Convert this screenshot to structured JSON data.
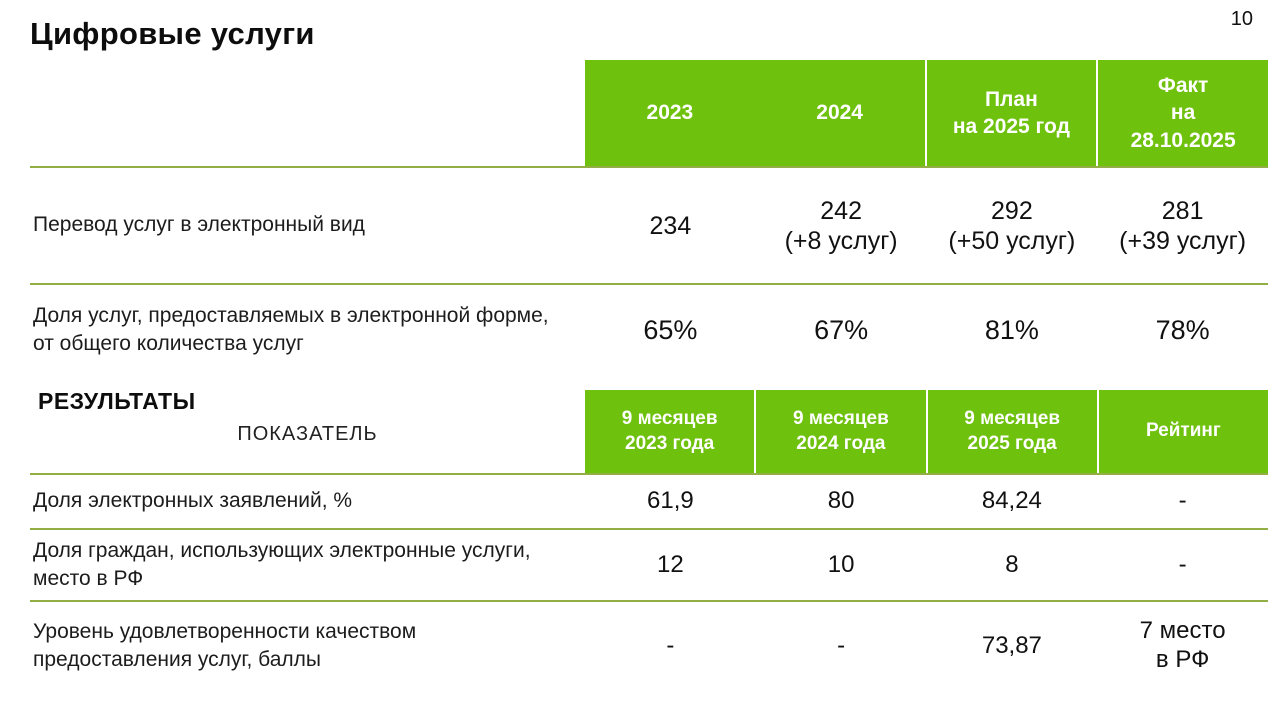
{
  "page": {
    "title": "Цифровые услуги",
    "page_number": "10"
  },
  "colors": {
    "header_green": "#6ec10c",
    "separator_line_green": "#93ae44",
    "header_text": "#ffffff",
    "body_text": "#1c1c1c"
  },
  "table1": {
    "columns": [
      "2023",
      "2024",
      "План\nна 2025 год",
      "Факт\nна\n28.10.2025"
    ],
    "rows": [
      {
        "label": "Перевод услуг в электронный вид",
        "values": [
          "234",
          "242\n(+8 услуг)",
          "292\n(+50 услуг)",
          "281\n(+39 услуг)"
        ]
      },
      {
        "label": "Доля услуг, предоставляемых в электронной форме, от общего количества услуг",
        "values": [
          "65%",
          "67%",
          "81%",
          "78%"
        ]
      }
    ]
  },
  "results": {
    "heading": "РЕЗУЛЬТАТЫ",
    "subheading": "ПОКАЗАТЕЛЬ"
  },
  "table2": {
    "columns": [
      "9 месяцев\n2023 года",
      "9 месяцев\n2024 года",
      "9 месяцев\n2025 года",
      "Рейтинг"
    ],
    "rows": [
      {
        "label": "Доля электронных заявлений, %",
        "values": [
          "61,9",
          "80",
          "84,24",
          "-"
        ]
      },
      {
        "label": "Доля граждан, использующих электронные услуги, место в РФ",
        "values": [
          "12",
          "10",
          "8",
          "-"
        ]
      },
      {
        "label": "Уровень удовлетворенности качеством предоставления услуг, баллы",
        "values": [
          "-",
          "-",
          "73,87",
          "7 место\nв РФ"
        ]
      }
    ]
  }
}
